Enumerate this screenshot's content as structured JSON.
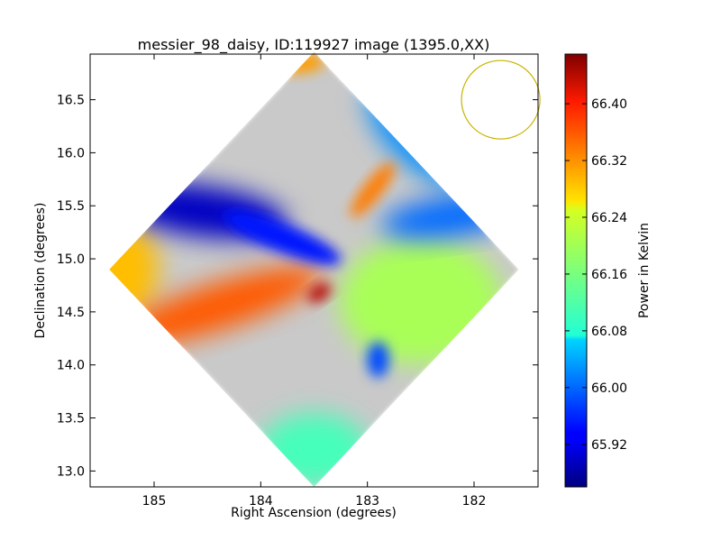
{
  "chart_data": {
    "type": "heatmap",
    "title": "messier_98_daisy, ID:119927 image (1395.0,XX)",
    "xlabel": "Right Ascension (degrees)",
    "ylabel": "Declination (degrees)",
    "xlim": [
      185.6,
      181.4
    ],
    "ylim": [
      12.85,
      16.93
    ],
    "x_ticks": [
      185,
      184,
      183,
      182
    ],
    "x_tick_labels": [
      "185",
      "184",
      "183",
      "182"
    ],
    "y_ticks": [
      13.0,
      13.5,
      14.0,
      14.5,
      15.0,
      15.5,
      16.0,
      16.5
    ],
    "y_tick_labels": [
      "13.0",
      "13.5",
      "14.0",
      "14.5",
      "15.0",
      "15.5",
      "16.0",
      "16.5"
    ],
    "colorbar": {
      "label": "Power in Kelvin",
      "colormap": "jet",
      "range": [
        65.86,
        66.47
      ],
      "ticks": [
        65.92,
        66.0,
        66.08,
        66.16,
        66.24,
        66.32,
        66.4
      ],
      "tick_labels": [
        "65.92",
        "66.00",
        "66.08",
        "66.16",
        "66.24",
        "66.32",
        "66.40"
      ]
    },
    "map": {
      "shape": "diamond",
      "center": [
        183.5,
        14.9
      ],
      "values_range": [
        65.9,
        66.44
      ],
      "background_value": 66.11,
      "features": [
        {
          "name": "low band (west)",
          "center": [
            184.55,
            15.45
          ],
          "value": 65.9
        },
        {
          "name": "low band (center)",
          "center": [
            183.8,
            15.2
          ],
          "value": 65.95
        },
        {
          "name": "low band (east)",
          "center": [
            182.2,
            15.4
          ],
          "value": 66.0
        },
        {
          "name": "low region (NE edge)",
          "center": [
            182.4,
            16.2
          ],
          "value": 66.02
        },
        {
          "name": "low spot (south)",
          "center": [
            182.9,
            14.05
          ],
          "value": 65.98
        },
        {
          "name": "high band (SW)",
          "center": [
            184.4,
            14.55
          ],
          "value": 66.34
        },
        {
          "name": "high region (W edge)",
          "center": [
            185.3,
            14.9
          ],
          "value": 66.28
        },
        {
          "name": "high spot (center)",
          "center": [
            183.45,
            14.68
          ],
          "value": 66.44
        },
        {
          "name": "high streak (north of center)",
          "center": [
            182.95,
            15.65
          ],
          "value": 66.32
        },
        {
          "name": "high region (top corner)",
          "center": [
            183.7,
            16.85
          ],
          "value": 66.3
        },
        {
          "name": "mid region (east)",
          "center": [
            182.5,
            14.6
          ],
          "value": 66.19
        },
        {
          "name": "mid region (south corner)",
          "center": [
            183.5,
            13.2
          ],
          "value": 66.13
        }
      ]
    },
    "beam_circle": {
      "center": [
        181.75,
        16.5
      ],
      "radius_deg": 0.37,
      "color": "#c8b400"
    }
  },
  "colors": {
    "beam": "#c8b400",
    "axes": "#000000"
  }
}
